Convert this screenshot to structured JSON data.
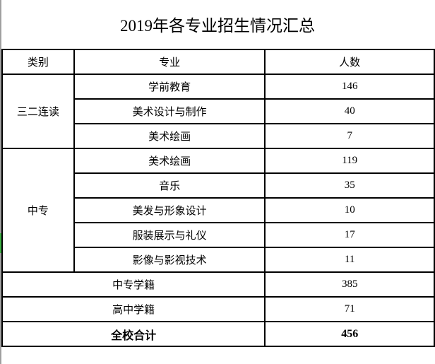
{
  "title": "2019年各专业招生情况汇总",
  "headers": {
    "category": "类别",
    "major": "专业",
    "count": "人数"
  },
  "groups": [
    {
      "category": "三二连读",
      "rows": [
        {
          "major": "学前教育",
          "count": "146"
        },
        {
          "major": "美术设计与制作",
          "count": "40"
        },
        {
          "major": "美术绘画",
          "count": "7"
        }
      ]
    },
    {
      "category": "中专",
      "rows": [
        {
          "major": "美术绘画",
          "count": "119"
        },
        {
          "major": "音乐",
          "count": "35"
        },
        {
          "major": "美发与形象设计",
          "count": "10"
        },
        {
          "major": "服装展示与礼仪",
          "count": "17"
        },
        {
          "major": "影像与影视技术",
          "count": "11"
        }
      ]
    }
  ],
  "summary": [
    {
      "label": "中专学籍",
      "count": "385"
    },
    {
      "label": "高中学籍",
      "count": "71"
    }
  ],
  "total": {
    "label": "全校合计",
    "count": "456"
  }
}
